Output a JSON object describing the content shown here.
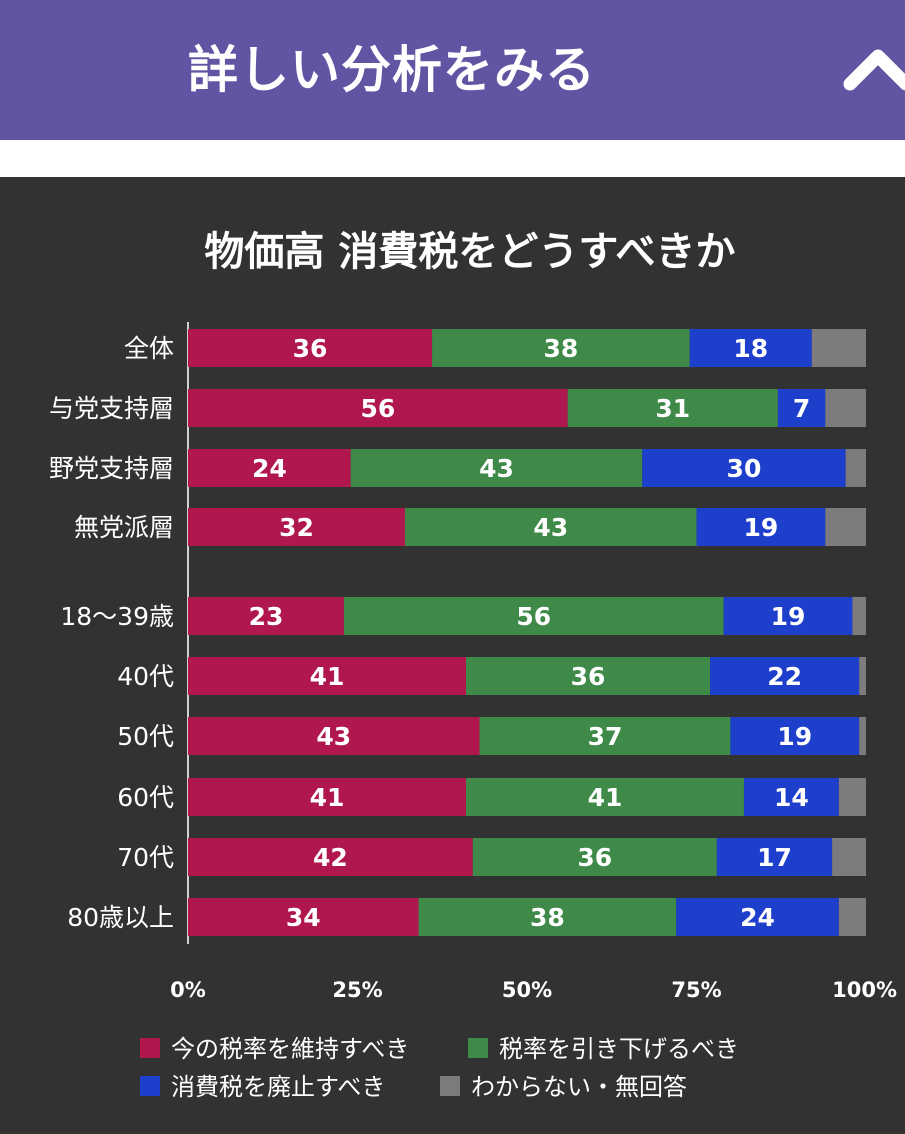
{
  "header": {
    "title": "詳しい分析をみる",
    "toggle_icon": "chevron-up-icon"
  },
  "chart_data": {
    "type": "bar",
    "orientation": "horizontal",
    "stacked": true,
    "title": "物価高 消費税をどうすべきか",
    "categories": [
      "全体",
      "与党支持層",
      "野党支持層",
      "無党派層",
      "18〜39歳",
      "40代",
      "50代",
      "60代",
      "70代",
      "80歳以上"
    ],
    "groups": [
      [
        0,
        1,
        2,
        3
      ],
      [
        4,
        5,
        6,
        7,
        8,
        9
      ]
    ],
    "series": [
      {
        "name": "今の税率を維持すべき",
        "color": "#b0174f",
        "values": [
          36,
          56,
          24,
          32,
          23,
          41,
          43,
          41,
          42,
          34
        ]
      },
      {
        "name": "税率を引き下げるべき",
        "color": "#3f8a49",
        "values": [
          38,
          31,
          43,
          43,
          56,
          36,
          37,
          41,
          36,
          38
        ]
      },
      {
        "name": "消費税を廃止すべき",
        "color": "#1d3fcc",
        "values": [
          18,
          7,
          30,
          19,
          19,
          22,
          19,
          14,
          17,
          24
        ]
      },
      {
        "name": "わからない・無回答",
        "color": "#7d7b7d",
        "values": [
          8,
          6,
          3,
          6,
          3,
          1,
          2,
          4,
          5,
          4
        ]
      }
    ],
    "label_series": [
      0,
      1,
      2
    ],
    "xlim": [
      0,
      100
    ],
    "xticks": [
      "0%",
      "25%",
      "50%",
      "75%",
      "100%"
    ],
    "grid": false,
    "legend_position": "bottom"
  }
}
